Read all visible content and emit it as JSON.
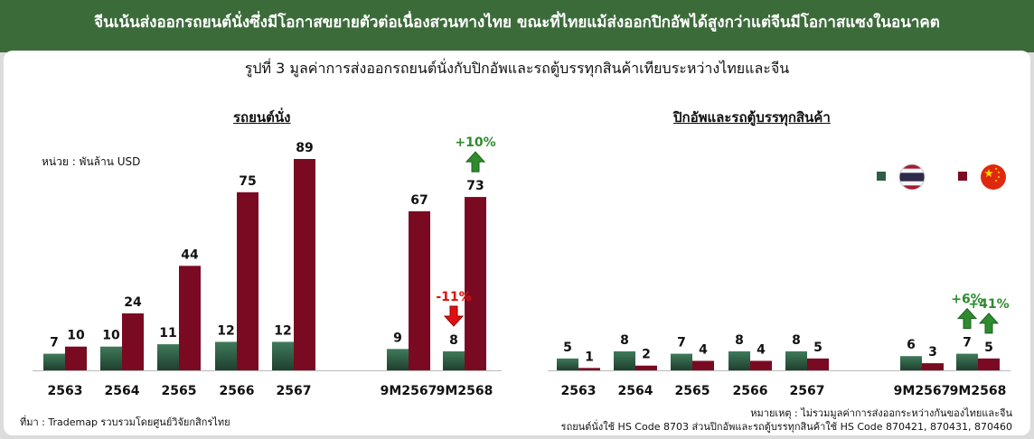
{
  "header": {
    "title": "จีนเน้นส่งออกรถยนต์นั่งซึ่งมีโอกาสขยายตัวต่อเนื่องสวนทางไทย ขณะที่ไทยแม้ส่งออกปิกอัพได้สูงกว่าแต่จีนมีโอกาสแซงในอนาคต",
    "figure_title": "รูปที่ 3 มูลค่าการส่งออกรถยนต์นั่งกับปิกอัพและรถตู้บรรทุกสินค้าเทียบระหว่างไทยและจีน",
    "unit": "หน่วย : พันล้าน USD",
    "source": "ที่มา : Trademap รวบรวมโดยศูนย์วิจัยกสิกรไทย",
    "note_line1": "หมายเหตุ : ไม่รวมมูลค่าการส่งออกระหว่างกันของไทยและจีน",
    "note_line2": "รถยนต์นั่งใช้ HS Code 8703 ส่วนปิกอัพและรถตู้บรรทุกสินค้าใช้ HS Code 870421, 870431, 870460"
  },
  "colors": {
    "thailand": "#2e5e44",
    "china": "#7a0a22",
    "up": "#2e8b2e",
    "down": "#e01010",
    "banner": "#3c6b3a"
  },
  "legend": [
    {
      "series": "thailand",
      "icon": "thailand-flag-icon"
    },
    {
      "series": "china",
      "icon": "china-flag-icon"
    }
  ],
  "chart_data": [
    {
      "type": "bar",
      "title": "รถยนต์นั่ง",
      "categories": [
        "2563",
        "2564",
        "2565",
        "2566",
        "2567",
        "9M2567",
        "9M2568"
      ],
      "series": [
        {
          "key": "thailand",
          "values": [
            7,
            10,
            11,
            12,
            12,
            9,
            8
          ]
        },
        {
          "key": "china",
          "values": [
            10,
            24,
            44,
            75,
            89,
            67,
            73
          ]
        }
      ],
      "annotations": [
        {
          "text": "-11%",
          "category": "9M2568",
          "series": "thailand",
          "direction": "down"
        },
        {
          "text": "+10%",
          "category": "9M2568",
          "series": "china",
          "direction": "up"
        }
      ],
      "ylim": [
        0,
        89
      ]
    },
    {
      "type": "bar",
      "title": "ปิกอัพและรถตู้บรรทุกสินค้า",
      "categories": [
        "2563",
        "2564",
        "2565",
        "2566",
        "2567",
        "9M2567",
        "9M2568"
      ],
      "series": [
        {
          "key": "thailand",
          "values": [
            5,
            8,
            7,
            8,
            8,
            6,
            7
          ]
        },
        {
          "key": "china",
          "values": [
            1,
            2,
            4,
            4,
            5,
            3,
            5
          ]
        }
      ],
      "annotations": [
        {
          "text": "+6%",
          "category": "9M2568",
          "series": "thailand",
          "direction": "up"
        },
        {
          "text": "+41%",
          "category": "9M2568",
          "series": "china",
          "direction": "up"
        }
      ],
      "ylim": [
        0,
        89
      ]
    }
  ]
}
